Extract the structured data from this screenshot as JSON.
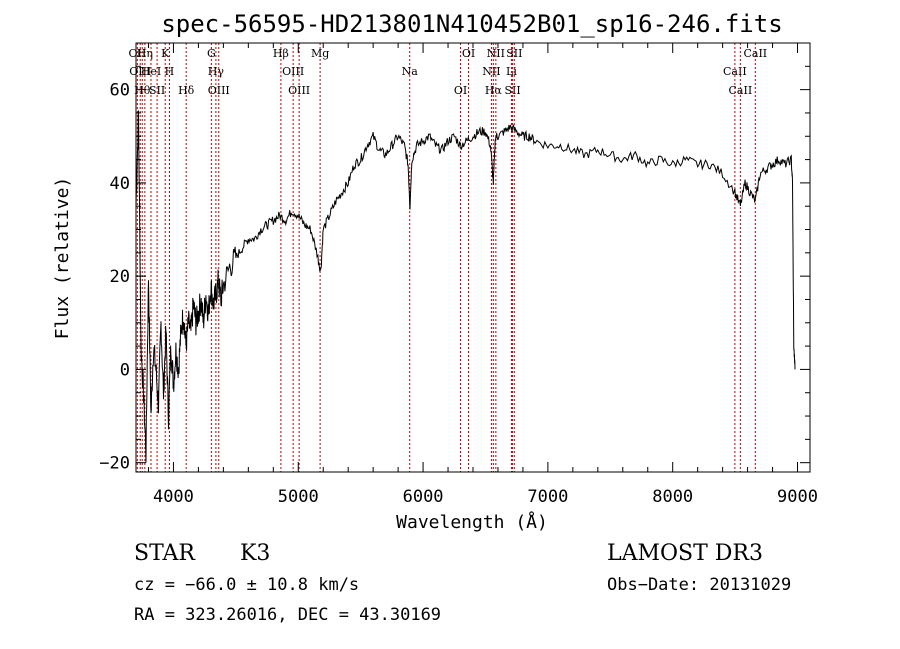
{
  "chart_data": {
    "type": "line",
    "title": "spec-56595-HD213801N410452B01_sp16-246.fits",
    "xlabel": "Wavelength (Å)",
    "ylabel": "Flux (relative)",
    "xlim": [
      3700,
      9100
    ],
    "ylim": [
      -22,
      70
    ],
    "xticks": [
      4000,
      5000,
      6000,
      7000,
      8000,
      9000
    ],
    "xtick_labels": [
      "4000",
      "5000",
      "6000",
      "7000",
      "8000",
      "9000"
    ],
    "yticks": [
      -20,
      0,
      20,
      40,
      60
    ],
    "ytick_labels": [
      "−20",
      "0",
      "20",
      "40",
      "60"
    ],
    "grid": false,
    "series": [
      {
        "x": [
          3700,
          3720,
          3740,
          3760,
          3780,
          3800,
          3820,
          3840,
          3860,
          3880,
          3900,
          3920,
          3940,
          3960,
          3980,
          4000,
          4020,
          4040,
          4060,
          4080,
          4100,
          4120,
          4140,
          4160,
          4180,
          4200,
          4220,
          4240,
          4260,
          4280,
          4300,
          4320,
          4340,
          4360,
          4380,
          4400,
          4450,
          4500,
          4550,
          4600,
          4650,
          4700,
          4750,
          4800,
          4850,
          4900,
          4950,
          5000,
          5050,
          5100,
          5150,
          5180,
          5200,
          5250,
          5300,
          5350,
          5400,
          5450,
          5500,
          5550,
          5600,
          5650,
          5700,
          5750,
          5800,
          5850,
          5880,
          5895,
          5910,
          5950,
          6000,
          6050,
          6100,
          6150,
          6200,
          6250,
          6300,
          6350,
          6400,
          6450,
          6500,
          6540,
          6563,
          6580,
          6600,
          6650,
          6700,
          6750,
          6800,
          6850,
          6900,
          7000,
          7100,
          7200,
          7300,
          7400,
          7500,
          7600,
          7700,
          7800,
          7900,
          8000,
          8100,
          8200,
          8300,
          8400,
          8498,
          8542,
          8580,
          8620,
          8662,
          8700,
          8750,
          8800,
          8850,
          8900,
          8950,
          8960,
          8970,
          8980
        ],
        "y": [
          35,
          55,
          5,
          -5,
          -18,
          20,
          -10,
          5,
          0,
          -8,
          10,
          -5,
          8,
          -10,
          5,
          -3,
          4,
          0,
          8,
          12,
          5,
          10,
          8,
          14,
          10,
          12,
          15,
          10,
          16,
          12,
          18,
          14,
          16,
          19,
          15,
          18,
          22,
          24,
          26,
          28,
          28,
          30,
          31,
          32,
          33,
          32,
          34,
          33,
          31,
          30,
          25,
          21,
          30,
          33,
          36,
          38,
          40,
          44,
          45,
          48,
          50,
          47,
          46,
          48,
          50,
          48,
          44,
          35,
          45,
          48,
          49,
          50,
          48,
          47,
          49,
          50,
          48,
          49,
          50,
          51,
          51,
          48,
          40,
          50,
          50,
          51,
          52,
          51,
          50,
          50,
          49,
          48,
          48,
          47,
          46,
          47,
          46,
          45,
          46,
          44,
          45,
          44,
          45,
          44,
          44,
          42,
          38,
          35,
          40,
          38,
          36,
          42,
          43,
          44,
          45,
          44,
          45,
          40,
          5,
          0
        ]
      }
    ],
    "lines": [
      {
        "x": 3711,
        "name": "OII"
      },
      {
        "x": 3734,
        "name": "OIII"
      },
      {
        "x": 3750,
        "name": "Hθ"
      },
      {
        "x": 3771,
        "name": "Hη"
      },
      {
        "x": 3820,
        "name": "HeI"
      },
      {
        "x": 3869,
        "name": "SII"
      },
      {
        "x": 3934,
        "name": "K"
      },
      {
        "x": 3968,
        "name": "H"
      },
      {
        "x": 4102,
        "name": "Hδ"
      },
      {
        "x": 4304,
        "name": "G"
      },
      {
        "x": 4340,
        "name": "Hγ"
      },
      {
        "x": 4363,
        "name": "OIII"
      },
      {
        "x": 4861,
        "name": "Hβ"
      },
      {
        "x": 4959,
        "name": "OIII"
      },
      {
        "x": 5007,
        "name": "OIII"
      },
      {
        "x": 5175,
        "name": "Mg"
      },
      {
        "x": 5893,
        "name": "Na"
      },
      {
        "x": 6300,
        "name": "OI"
      },
      {
        "x": 6364,
        "name": "OI"
      },
      {
        "x": 6548,
        "name": "NII"
      },
      {
        "x": 6563,
        "name": "Hα"
      },
      {
        "x": 6583,
        "name": "NII"
      },
      {
        "x": 6708,
        "name": "Li"
      },
      {
        "x": 6717,
        "name": "SII"
      },
      {
        "x": 6731,
        "name": "SII"
      },
      {
        "x": 8498,
        "name": "CaII"
      },
      {
        "x": 8542,
        "name": "CaII"
      },
      {
        "x": 8662,
        "name": "CaII"
      }
    ]
  },
  "info": {
    "class": "STAR",
    "subclass": "K3",
    "survey": "LAMOST DR3",
    "cz": "cz = −66.0 ± 10.8 km/s",
    "obs_date": "Obs−Date: 20131029",
    "coords": "RA = 323.26016, DEC =  43.30169"
  },
  "colors": {
    "axis": "#000000",
    "line_marker": "#c00000",
    "spectrum": "#000000"
  }
}
